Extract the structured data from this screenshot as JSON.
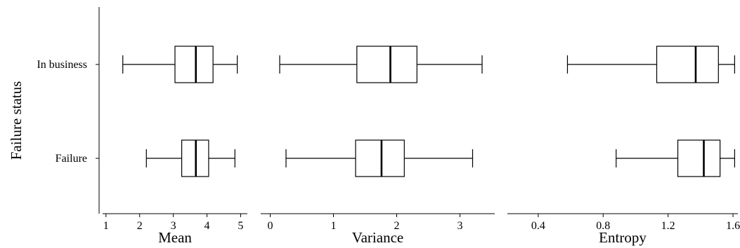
{
  "chart_data": {
    "type": "boxplot",
    "ylabel": "Failure status",
    "categories": [
      "In business",
      "Failure"
    ],
    "panels": [
      {
        "xlabel": "Mean",
        "xlim": [
          0.9,
          5.2
        ],
        "ticks": [
          1,
          2,
          3,
          4,
          5
        ],
        "tick_labels": [
          "1",
          "2",
          "3",
          "4",
          "5"
        ],
        "boxes": [
          {
            "category": "In business",
            "min": 1.5,
            "q1": 3.05,
            "median": 3.67,
            "q3": 4.18,
            "max": 4.9
          },
          {
            "category": "Failure",
            "min": 2.2,
            "q1": 3.25,
            "median": 3.67,
            "q3": 4.05,
            "max": 4.83
          }
        ]
      },
      {
        "xlabel": "Variance",
        "xlim": [
          -0.15,
          3.55
        ],
        "ticks": [
          0,
          1,
          2,
          3
        ],
        "tick_labels": [
          "0",
          "1",
          "2",
          "3"
        ],
        "boxes": [
          {
            "category": "In business",
            "min": 0.15,
            "q1": 1.37,
            "median": 1.9,
            "q3": 2.32,
            "max": 3.35
          },
          {
            "category": "Failure",
            "min": 0.25,
            "q1": 1.35,
            "median": 1.76,
            "q3": 2.12,
            "max": 3.2
          }
        ]
      },
      {
        "xlabel": "Entropy",
        "xlim": [
          0.21,
          1.63
        ],
        "ticks": [
          0.4,
          0.8,
          1.2,
          1.6
        ],
        "tick_labels": [
          "0.4",
          "0.8",
          "1.2",
          "1.6"
        ],
        "boxes": [
          {
            "category": "In business",
            "min": 0.58,
            "q1": 1.13,
            "median": 1.37,
            "q3": 1.51,
            "max": 1.61
          },
          {
            "category": "Failure",
            "min": 0.88,
            "q1": 1.26,
            "median": 1.42,
            "q3": 1.52,
            "max": 1.61
          }
        ]
      }
    ]
  }
}
